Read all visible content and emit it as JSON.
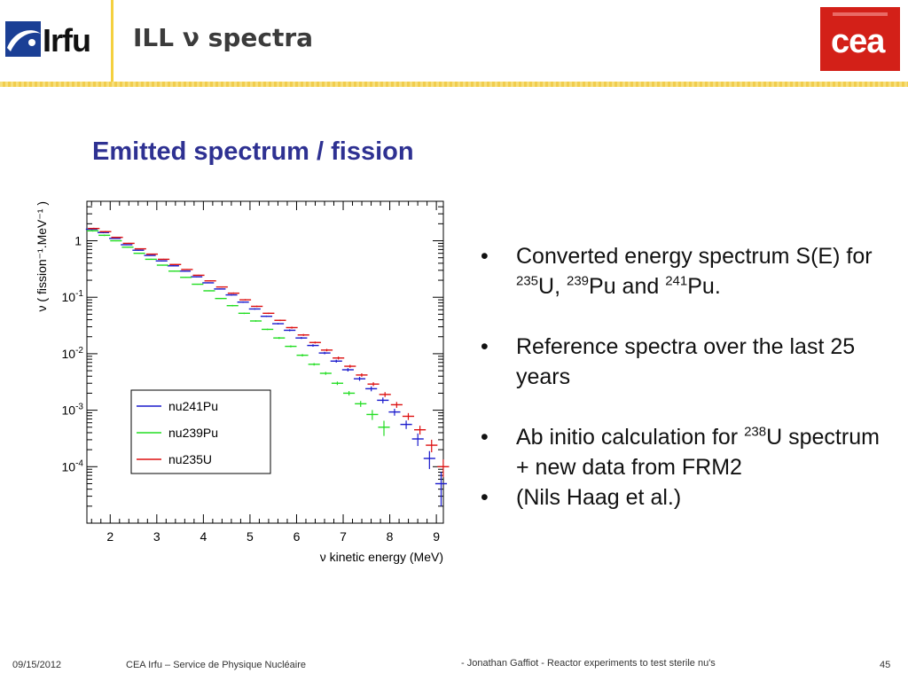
{
  "header": {
    "logo_text": "Irfu",
    "title": "ILL ν spectra",
    "cea_logo_text": "cea"
  },
  "subtitle": "Emitted spectrum / fission",
  "bullets": [
    {
      "dot": "•",
      "parts": [
        {
          "t": "Converted energy spectrum S(E) for "
        },
        {
          "sup": "235"
        },
        {
          "t": "U, "
        },
        {
          "sup": "239"
        },
        {
          "t": "Pu and "
        },
        {
          "sup": "241"
        },
        {
          "t": "Pu."
        }
      ]
    },
    {
      "dot": "•",
      "parts": [
        {
          "t": "Reference spectra over the last 25 years"
        }
      ]
    },
    {
      "dot": "•",
      "parts": [
        {
          "t": "Ab initio calculation for "
        },
        {
          "sup": "238"
        },
        {
          "t": "U spectrum + new data from FRM2"
        }
      ]
    },
    {
      "dot": "•",
      "parts": [
        {
          "t": "(Nils Haag et al.)"
        }
      ]
    }
  ],
  "footer": {
    "date": "09/15/2012",
    "org": "CEA Irfu – Service de Physique Nucléaire",
    "talk": "- Jonathan Gaffiot - Reactor experiments to test sterile nu's",
    "page": "45"
  },
  "colors": {
    "title_blue": "#2e3192",
    "nu241Pu": "#1a1acc",
    "nu239Pu": "#22dd22",
    "nu235U": "#dd1111"
  },
  "chart_data": {
    "type": "scatter",
    "xlabel": "ν kinetic energy (MeV)",
    "ylabel": "ν  ( fission⁻¹.MeV⁻¹ )",
    "xlim": [
      1.5,
      9.15
    ],
    "ylim": [
      1e-05,
      5
    ],
    "y_scale": "log",
    "x_ticks": [
      2,
      3,
      4,
      5,
      6,
      7,
      8,
      9
    ],
    "y_ticks": [
      {
        "v": 1,
        "base": "1",
        "exp": ""
      },
      {
        "v": 0.1,
        "base": "10",
        "exp": "-1"
      },
      {
        "v": 0.01,
        "base": "10",
        "exp": "-2"
      },
      {
        "v": 0.001,
        "base": "10",
        "exp": "-3"
      },
      {
        "v": 0.0001,
        "base": "10",
        "exp": "-4"
      }
    ],
    "legend": {
      "placement": "bottom-left"
    },
    "x": [
      1.625,
      1.875,
      2.125,
      2.375,
      2.625,
      2.875,
      3.125,
      3.375,
      3.625,
      3.875,
      4.125,
      4.375,
      4.625,
      4.875,
      5.125,
      5.375,
      5.625,
      5.875,
      6.125,
      6.375,
      6.625,
      6.875,
      7.125,
      7.375,
      7.625,
      7.875,
      8.125,
      8.375,
      8.625,
      8.875,
      9.125
    ],
    "series": [
      {
        "name": "nu241Pu",
        "color": "#1a1acc",
        "values": [
          1.6,
          1.4,
          1.1,
          0.85,
          0.68,
          0.55,
          0.44,
          0.36,
          0.29,
          0.23,
          0.18,
          0.14,
          0.11,
          0.082,
          0.062,
          0.046,
          0.034,
          0.026,
          0.019,
          0.014,
          0.0103,
          0.0074,
          0.0052,
          0.0036,
          0.0024,
          0.0015,
          0.00093,
          0.00056,
          0.00031,
          0.00014,
          5e-05
        ],
        "yerr": [
          0.03,
          0.03,
          0.02,
          0.02,
          0.02,
          0.02,
          0.02,
          0.02,
          0.02,
          0.02,
          0.02,
          0.02,
          0.03,
          0.03,
          0.03,
          0.03,
          0.03,
          0.04,
          0.04,
          0.05,
          0.05,
          0.06,
          0.07,
          0.08,
          0.1,
          0.12,
          0.14,
          0.17,
          0.25,
          0.35,
          0.6
        ]
      },
      {
        "name": "nu239Pu",
        "color": "#22dd22",
        "values": [
          1.5,
          1.25,
          1.0,
          0.77,
          0.6,
          0.47,
          0.37,
          0.29,
          0.225,
          0.17,
          0.13,
          0.095,
          0.071,
          0.052,
          0.038,
          0.027,
          0.019,
          0.0135,
          0.0094,
          0.0065,
          0.0045,
          0.003,
          0.002,
          0.0013,
          0.00084,
          0.0005
        ],
        "yerr": [
          0.03,
          0.03,
          0.02,
          0.02,
          0.02,
          0.02,
          0.02,
          0.02,
          0.02,
          0.02,
          0.02,
          0.02,
          0.03,
          0.03,
          0.03,
          0.03,
          0.04,
          0.04,
          0.05,
          0.05,
          0.06,
          0.07,
          0.09,
          0.12,
          0.2,
          0.3
        ]
      },
      {
        "name": "nu235U",
        "color": "#dd1111",
        "values": [
          1.65,
          1.45,
          1.15,
          0.9,
          0.72,
          0.58,
          0.47,
          0.38,
          0.31,
          0.245,
          0.195,
          0.152,
          0.118,
          0.09,
          0.069,
          0.052,
          0.039,
          0.029,
          0.0215,
          0.0158,
          0.0116,
          0.0084,
          0.006,
          0.0042,
          0.0029,
          0.0019,
          0.00125,
          0.00078,
          0.00045,
          0.00024,
          0.0001
        ],
        "yerr": [
          0.03,
          0.03,
          0.02,
          0.02,
          0.02,
          0.02,
          0.02,
          0.02,
          0.02,
          0.02,
          0.02,
          0.02,
          0.03,
          0.03,
          0.03,
          0.03,
          0.03,
          0.04,
          0.04,
          0.04,
          0.05,
          0.06,
          0.06,
          0.07,
          0.08,
          0.1,
          0.12,
          0.14,
          0.18,
          0.25,
          0.35
        ]
      }
    ]
  }
}
